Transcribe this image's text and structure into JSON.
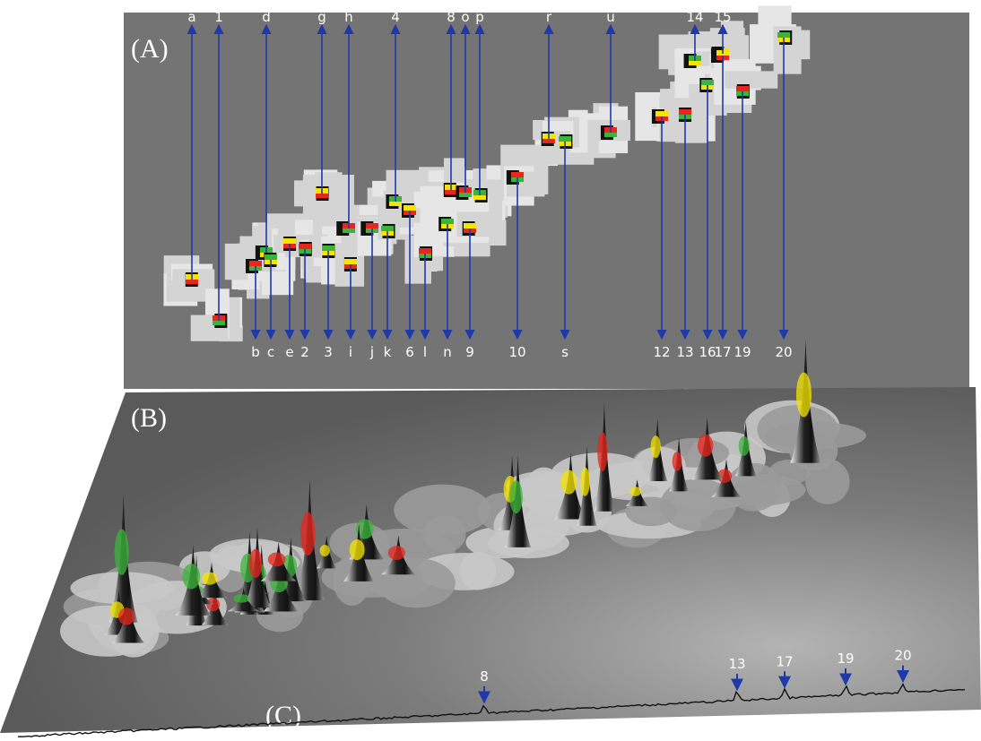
{
  "panels": {
    "a": {
      "label": "(A)",
      "top_labels": [
        "a",
        "1",
        "d",
        "g",
        "h",
        "4",
        "8",
        "o",
        "p",
        "r",
        "u",
        "14",
        "15"
      ],
      "bottom_labels": [
        "b",
        "c",
        "e",
        "2",
        "3",
        "i",
        "j",
        "k",
        "6",
        "l",
        "n",
        "9",
        "10",
        "s",
        "12",
        "13",
        "16",
        "17",
        "19",
        "20"
      ]
    },
    "b": {
      "label": "(B)"
    },
    "c": {
      "label": "(C)",
      "peak_labels": [
        "8",
        "13",
        "17",
        "19",
        "20"
      ]
    }
  }
}
